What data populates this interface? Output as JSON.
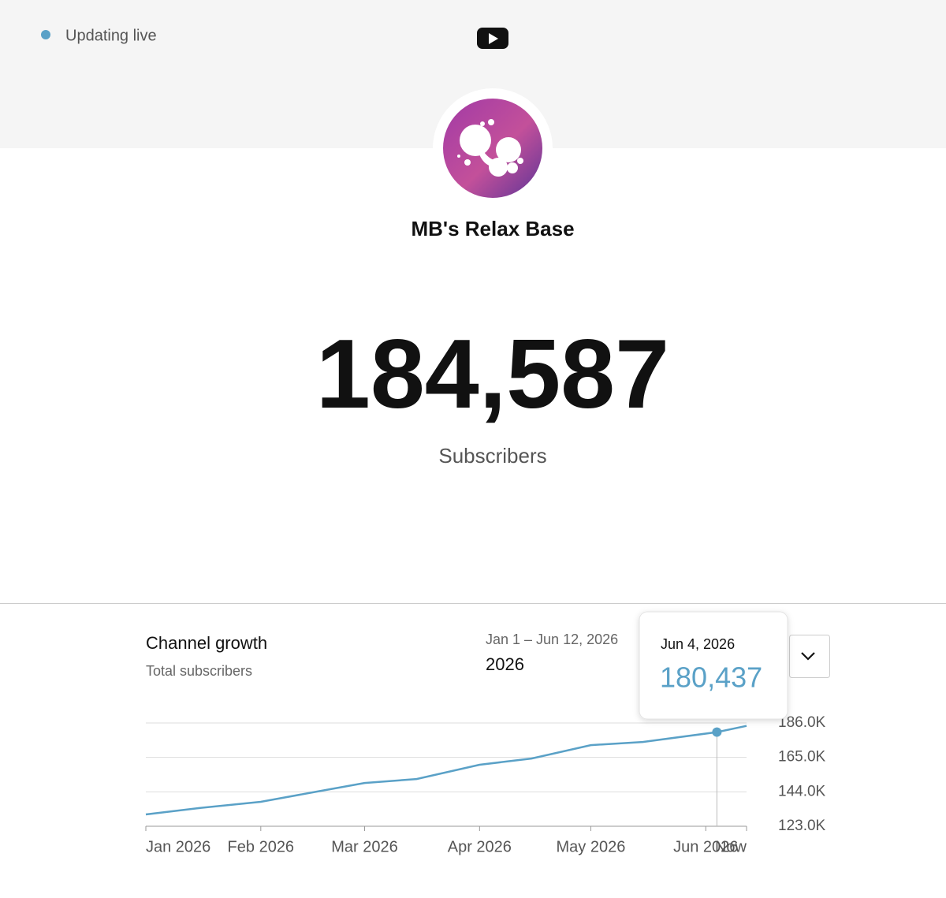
{
  "status": "Updating live",
  "channel": {
    "name": "MB's Relax Base"
  },
  "count": {
    "value": "184,587",
    "label": "Subscribers"
  },
  "growth": {
    "title": "Channel growth",
    "subtitle": "Total subscribers",
    "date_range": "Jan 1 – Jun 12, 2026",
    "year": "2026"
  },
  "tooltip": {
    "date": "Jun 4, 2026",
    "value": "180,437"
  },
  "chart_data": {
    "type": "line",
    "color": "#5aa1c7",
    "x": [
      "2026-01-01",
      "2026-01-15",
      "2026-02-01",
      "2026-02-15",
      "2026-03-01",
      "2026-03-15",
      "2026-04-01",
      "2026-04-15",
      "2026-05-01",
      "2026-05-15",
      "2026-06-04",
      "2026-06-12"
    ],
    "values": [
      130200,
      134000,
      137900,
      143700,
      149400,
      151800,
      160500,
      164300,
      172500,
      174400,
      180437,
      184200
    ],
    "xlim": [
      "2026-01-01",
      "2026-06-12"
    ],
    "xticks": [
      {
        "value": "2026-01-01",
        "label": "Jan 2026"
      },
      {
        "value": "2026-02-01",
        "label": "Feb 2026"
      },
      {
        "value": "2026-03-01",
        "label": "Mar 2026"
      },
      {
        "value": "2026-04-01",
        "label": "Apr 2026"
      },
      {
        "value": "2026-05-01",
        "label": "May 2026"
      },
      {
        "value": "2026-06-01",
        "label": "Jun 2026"
      },
      {
        "value": "2026-06-12",
        "label": "Now"
      }
    ],
    "ylim": [
      123000,
      186000
    ],
    "yticks": [
      {
        "value": 123000,
        "label": "123.0K"
      },
      {
        "value": 144000,
        "label": "144.0K"
      },
      {
        "value": 165000,
        "label": "165.0K"
      },
      {
        "value": 186000,
        "label": "186.0K"
      }
    ],
    "grid": true
  }
}
